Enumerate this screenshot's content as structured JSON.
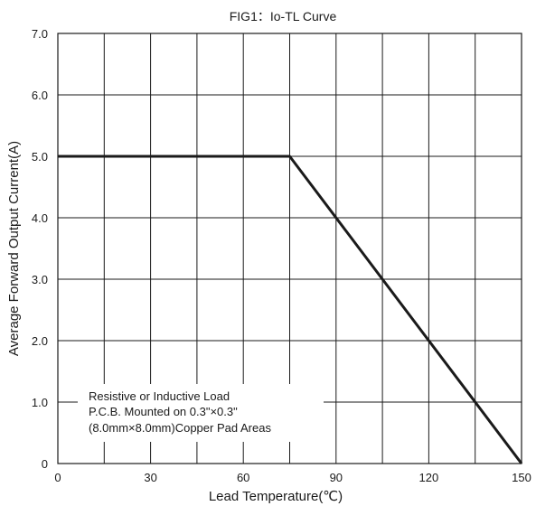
{
  "chart_data": {
    "type": "line",
    "title": "FIG1：Io-TL Curve",
    "xlabel": "Lead Temperature(℃)",
    "ylabel": "Average Forward Output Current(A)",
    "xlim": [
      0,
      150
    ],
    "ylim": [
      0,
      7
    ],
    "x_ticks": [
      0,
      30,
      60,
      90,
      120,
      150
    ],
    "x_tick_labels": [
      "0",
      "30",
      "60",
      "90",
      "120",
      "150"
    ],
    "x_grid": [
      0,
      15,
      30,
      45,
      60,
      75,
      90,
      105,
      120,
      135,
      150
    ],
    "y_ticks": [
      0,
      1,
      2,
      3,
      4,
      5,
      6,
      7
    ],
    "y_tick_labels": [
      "0",
      "1.0",
      "2.0",
      "3.0",
      "4.0",
      "5.0",
      "6.0",
      "7.0"
    ],
    "grid": true,
    "series": [
      {
        "x": [
          0,
          75,
          150
        ],
        "values": [
          5.0,
          5.0,
          0.0
        ]
      }
    ],
    "annotation_lines": [
      "Resistive or Inductive Load",
      "P.C.B. Mounted on 0.3\"×0.3\"",
      "(8.0mm×8.0mm)Copper Pad Areas"
    ],
    "colors": {
      "grid": "#1a1a1a",
      "curve": "#1a1a1a"
    }
  }
}
